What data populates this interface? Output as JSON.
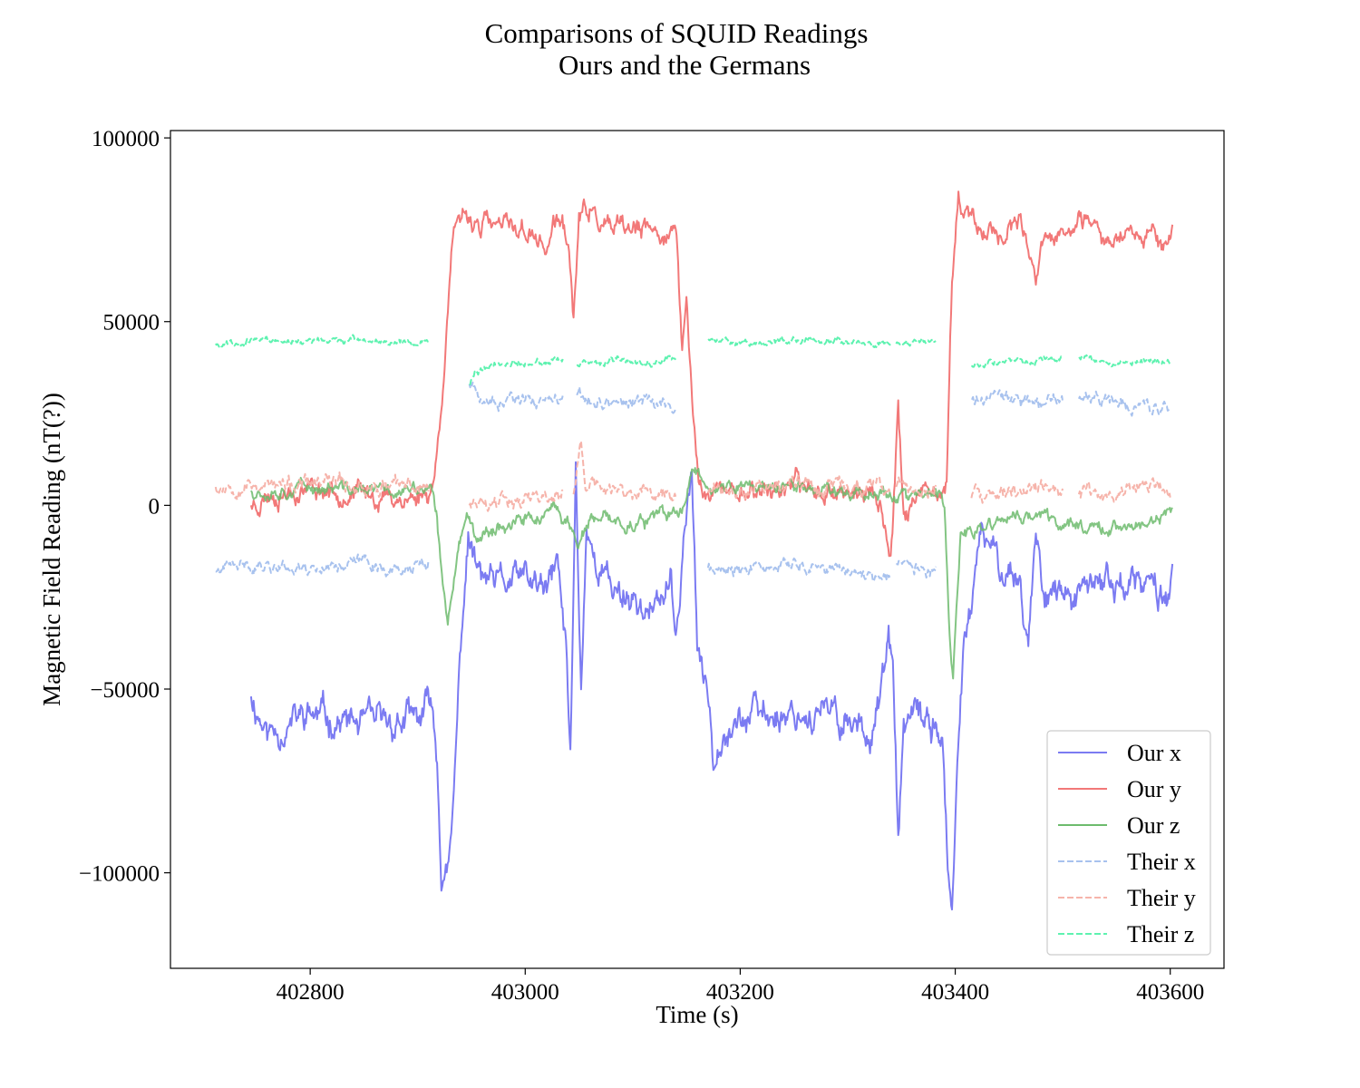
{
  "chart_data": {
    "type": "line",
    "title_lines": [
      "Comparisons of SQUID Readings",
      "Ours and the Germans"
    ],
    "xlabel": "Time (s)",
    "ylabel": "Magnetic Field Reading (nT(?))",
    "xlim": [
      402670,
      403650
    ],
    "ylim": [
      -126000,
      102000
    ],
    "x_ticks": [
      402800,
      403000,
      403200,
      403400,
      403600
    ],
    "x_tick_labels": [
      "402800",
      "403000",
      "403200",
      "403400",
      "403600"
    ],
    "y_ticks": [
      100000,
      50000,
      0,
      -50000,
      -100000
    ],
    "y_tick_labels": [
      "100000",
      "50000",
      "0",
      "−50000",
      "−100000"
    ],
    "grid": false,
    "legend_position": "bottom-right",
    "series": [
      {
        "name": "Our x",
        "color": "#7b7bf2",
        "style": "solid",
        "opacity": 1,
        "noise": 4500,
        "seed": 11,
        "points": [
          [
            402745,
            -52000
          ],
          [
            402760,
            -62000
          ],
          [
            402800,
            -57000
          ],
          [
            402850,
            -60000
          ],
          [
            402905,
            -58000
          ],
          [
            402912,
            -52000
          ],
          [
            402918,
            -68000
          ],
          [
            402922,
            -100000
          ],
          [
            402927,
            -103000
          ],
          [
            402932,
            -90000
          ],
          [
            402940,
            -38000
          ],
          [
            402947,
            -8000
          ],
          [
            402955,
            -18000
          ],
          [
            402970,
            -22000
          ],
          [
            403000,
            -20000
          ],
          [
            403020,
            -24000
          ],
          [
            403030,
            -15000
          ],
          [
            403038,
            -40000
          ],
          [
            403042,
            -68000
          ],
          [
            403047,
            10000
          ],
          [
            403052,
            -50000
          ],
          [
            403057,
            -5000
          ],
          [
            403065,
            -15000
          ],
          [
            403080,
            -22000
          ],
          [
            403100,
            -25000
          ],
          [
            403120,
            -30000
          ],
          [
            403135,
            -20000
          ],
          [
            403140,
            -40000
          ],
          [
            403148,
            -5000
          ],
          [
            403155,
            8000
          ],
          [
            403160,
            -38000
          ],
          [
            403165,
            -48000
          ],
          [
            403170,
            -50000
          ],
          [
            403175,
            -68000
          ],
          [
            403182,
            -60000
          ],
          [
            403200,
            -58000
          ],
          [
            403250,
            -56000
          ],
          [
            403300,
            -58000
          ],
          [
            403320,
            -62000
          ],
          [
            403330,
            -52000
          ],
          [
            403338,
            -38000
          ],
          [
            403342,
            -45000
          ],
          [
            403347,
            -93000
          ],
          [
            403352,
            -60000
          ],
          [
            403365,
            -58000
          ],
          [
            403380,
            -60000
          ],
          [
            403388,
            -62000
          ],
          [
            403393,
            -100000
          ],
          [
            403397,
            -113000
          ],
          [
            403402,
            -75000
          ],
          [
            403408,
            -35000
          ],
          [
            403415,
            -28000
          ],
          [
            403425,
            -8000
          ],
          [
            403440,
            -15000
          ],
          [
            403460,
            -20000
          ],
          [
            403468,
            -38000
          ],
          [
            403475,
            -5000
          ],
          [
            403480,
            -20000
          ],
          [
            403500,
            -25000
          ],
          [
            403520,
            -25000
          ],
          [
            403540,
            -20000
          ],
          [
            403560,
            -22000
          ],
          [
            403580,
            -22000
          ],
          [
            403595,
            -25000
          ],
          [
            403602,
            -18000
          ]
        ]
      },
      {
        "name": "Our y",
        "color": "#f27878",
        "style": "solid",
        "opacity": 1,
        "noise": 3000,
        "seed": 23,
        "points": [
          [
            402745,
            0
          ],
          [
            402760,
            3000
          ],
          [
            402800,
            5000
          ],
          [
            402850,
            3000
          ],
          [
            402880,
            2000
          ],
          [
            402900,
            2000
          ],
          [
            402912,
            4000
          ],
          [
            402918,
            14000
          ],
          [
            402925,
            40000
          ],
          [
            402932,
            72000
          ],
          [
            402945,
            78000
          ],
          [
            402970,
            76000
          ],
          [
            403000,
            75000
          ],
          [
            403020,
            70000
          ],
          [
            403030,
            78000
          ],
          [
            403040,
            72000
          ],
          [
            403045,
            50000
          ],
          [
            403050,
            78000
          ],
          [
            403060,
            80000
          ],
          [
            403080,
            74000
          ],
          [
            403100,
            75000
          ],
          [
            403120,
            74000
          ],
          [
            403135,
            75000
          ],
          [
            403140,
            74000
          ],
          [
            403146,
            42000
          ],
          [
            403150,
            56000
          ],
          [
            403156,
            25000
          ],
          [
            403162,
            5000
          ],
          [
            403175,
            4000
          ],
          [
            403200,
            4000
          ],
          [
            403250,
            5000
          ],
          [
            403300,
            4000
          ],
          [
            403330,
            2000
          ],
          [
            403340,
            -15000
          ],
          [
            403347,
            28000
          ],
          [
            403352,
            -2000
          ],
          [
            403365,
            2000
          ],
          [
            403385,
            1000
          ],
          [
            403392,
            6000
          ],
          [
            403397,
            60000
          ],
          [
            403403,
            86000
          ],
          [
            403415,
            76000
          ],
          [
            403440,
            74000
          ],
          [
            403460,
            76000
          ],
          [
            403475,
            60000
          ],
          [
            403480,
            70000
          ],
          [
            403500,
            74000
          ],
          [
            403520,
            76000
          ],
          [
            403540,
            72000
          ],
          [
            403560,
            76000
          ],
          [
            403580,
            75000
          ],
          [
            403595,
            72000
          ],
          [
            403602,
            73000
          ]
        ]
      },
      {
        "name": "Our z",
        "color": "#6dbb6d",
        "style": "solid",
        "opacity": 0.85,
        "noise": 2000,
        "seed": 37,
        "points": [
          [
            402745,
            4000
          ],
          [
            402800,
            5000
          ],
          [
            402850,
            4000
          ],
          [
            402900,
            4000
          ],
          [
            402912,
            5000
          ],
          [
            402918,
            -5000
          ],
          [
            402924,
            -25000
          ],
          [
            402928,
            -31000
          ],
          [
            402933,
            -20000
          ],
          [
            402940,
            -8000
          ],
          [
            402948,
            -2000
          ],
          [
            402955,
            -8000
          ],
          [
            402970,
            -6000
          ],
          [
            403000,
            -4000
          ],
          [
            403030,
            -2000
          ],
          [
            403040,
            -5000
          ],
          [
            403050,
            -10000
          ],
          [
            403060,
            -5000
          ],
          [
            403080,
            -4000
          ],
          [
            403100,
            -5000
          ],
          [
            403130,
            -3000
          ],
          [
            403145,
            -2000
          ],
          [
            403155,
            10000
          ],
          [
            403165,
            8000
          ],
          [
            403180,
            4000
          ],
          [
            403200,
            5000
          ],
          [
            403250,
            5000
          ],
          [
            403300,
            4000
          ],
          [
            403340,
            3000
          ],
          [
            403360,
            2000
          ],
          [
            403385,
            3000
          ],
          [
            403390,
            -2000
          ],
          [
            403394,
            -30000
          ],
          [
            403398,
            -48000
          ],
          [
            403405,
            -8000
          ],
          [
            403420,
            -8000
          ],
          [
            403440,
            -4000
          ],
          [
            403460,
            -3000
          ],
          [
            403480,
            -3000
          ],
          [
            403500,
            -5000
          ],
          [
            403520,
            -5000
          ],
          [
            403540,
            -6000
          ],
          [
            403560,
            -6000
          ],
          [
            403580,
            -5000
          ],
          [
            403602,
            -2000
          ]
        ]
      },
      {
        "name": "Their x",
        "color": "#a8c2ee",
        "style": "dashed",
        "opacity": 1,
        "noise": 1800,
        "seed": 41,
        "points": [
          [
            402712,
            -18000
          ],
          [
            402750,
            -16000
          ],
          [
            402800,
            -17000
          ],
          [
            402850,
            -15000
          ],
          [
            402880,
            -18000
          ],
          [
            402910,
            -16000
          ],
          null,
          [
            402948,
            33000
          ],
          [
            402960,
            28000
          ],
          [
            403000,
            28000
          ],
          [
            403035,
            28000
          ],
          null,
          [
            403048,
            30000
          ],
          [
            403060,
            28000
          ],
          [
            403100,
            28000
          ],
          [
            403140,
            28000
          ],
          null,
          [
            403170,
            -17000
          ],
          [
            403200,
            -18000
          ],
          [
            403250,
            -16000
          ],
          [
            403300,
            -18000
          ],
          [
            403340,
            -19000
          ],
          null,
          [
            403345,
            -16000
          ],
          [
            403382,
            -18000
          ],
          null,
          [
            403415,
            29000
          ],
          [
            403450,
            28000
          ],
          [
            403500,
            28000
          ],
          null,
          [
            403515,
            29000
          ],
          [
            403550,
            28000
          ],
          [
            403600,
            26000
          ]
        ]
      },
      {
        "name": "Their y",
        "color": "#f6b4ab",
        "style": "dashed",
        "opacity": 1,
        "noise": 2200,
        "seed": 53,
        "points": [
          [
            402712,
            5000
          ],
          [
            402740,
            6000
          ],
          [
            402780,
            5000
          ],
          [
            402820,
            6000
          ],
          [
            402860,
            5000
          ],
          [
            402910,
            5000
          ],
          null,
          [
            402948,
            0
          ],
          [
            402970,
            2000
          ],
          [
            403000,
            2000
          ],
          [
            403035,
            3000
          ],
          null,
          [
            403045,
            3000
          ],
          [
            403052,
            17000
          ],
          [
            403056,
            6000
          ],
          [
            403080,
            4000
          ],
          [
            403110,
            3000
          ],
          [
            403140,
            3000
          ],
          null,
          [
            403170,
            4000
          ],
          [
            403200,
            5000
          ],
          [
            403250,
            6000
          ],
          [
            403300,
            5000
          ],
          [
            403340,
            4000
          ],
          null,
          [
            403345,
            5000
          ],
          [
            403382,
            4000
          ],
          null,
          [
            403415,
            2000
          ],
          [
            403450,
            3000
          ],
          [
            403480,
            6000
          ],
          [
            403500,
            3000
          ],
          null,
          [
            403515,
            3000
          ],
          [
            403550,
            3000
          ],
          [
            403580,
            6000
          ],
          [
            403600,
            2000
          ]
        ]
      },
      {
        "name": "Their z",
        "color": "#5ef2b0",
        "style": "dashed",
        "opacity": 1,
        "noise": 900,
        "seed": 67,
        "points": [
          [
            402712,
            44000
          ],
          [
            402750,
            45000
          ],
          [
            402800,
            44500
          ],
          [
            402850,
            45000
          ],
          [
            402910,
            44500
          ],
          null,
          [
            402948,
            33000
          ],
          [
            402953,
            36000
          ],
          [
            402965,
            38000
          ],
          [
            403000,
            39000
          ],
          [
            403035,
            39000
          ],
          null,
          [
            403048,
            38000
          ],
          [
            403080,
            39000
          ],
          [
            403110,
            39000
          ],
          [
            403140,
            40000
          ],
          null,
          [
            403170,
            45000
          ],
          [
            403200,
            44500
          ],
          [
            403250,
            45000
          ],
          [
            403300,
            45000
          ],
          [
            403340,
            44000
          ],
          null,
          [
            403345,
            44000
          ],
          [
            403382,
            44500
          ],
          null,
          [
            403415,
            38000
          ],
          [
            403450,
            39000
          ],
          [
            403500,
            40000
          ],
          null,
          [
            403515,
            40000
          ],
          [
            403550,
            39000
          ],
          [
            403600,
            39000
          ]
        ]
      }
    ]
  }
}
